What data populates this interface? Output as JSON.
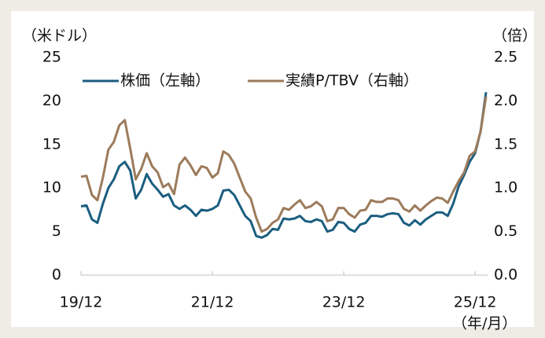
{
  "chart_data": {
    "type": "line",
    "y_label": "（米ドル）",
    "y2_label": "（倍）",
    "x_label": "（年/月）",
    "categories": [
      "19/12",
      null,
      null,
      null,
      null,
      null,
      null,
      null,
      null,
      null,
      null,
      null,
      null,
      null,
      null,
      null,
      null,
      null,
      null,
      null,
      null,
      null,
      null,
      null,
      "21/12",
      null,
      null,
      null,
      null,
      null,
      null,
      null,
      null,
      null,
      null,
      null,
      null,
      null,
      null,
      null,
      null,
      null,
      null,
      null,
      null,
      null,
      null,
      null,
      "23/12",
      null,
      null,
      null,
      null,
      null,
      null,
      null,
      null,
      null,
      null,
      null,
      null,
      null,
      null,
      null,
      null,
      null,
      null,
      null,
      null,
      null,
      null,
      null,
      "25/12",
      null,
      null
    ],
    "series": [
      {
        "name": "株価（左軸）",
        "color": "#1b5e80",
        "values": [
          7.9,
          8.0,
          6.4,
          6.0,
          8.2,
          10.0,
          11.0,
          12.5,
          13.0,
          12.0,
          8.8,
          9.8,
          11.6,
          10.5,
          9.8,
          9.0,
          9.3,
          8.0,
          7.6,
          8.0,
          7.5,
          6.8,
          7.5,
          7.4,
          7.6,
          8.0,
          9.7,
          9.8,
          9.2,
          8.0,
          6.8,
          6.2,
          4.5,
          4.3,
          4.6,
          5.3,
          5.2,
          6.5,
          6.4,
          6.5,
          6.8,
          6.2,
          6.1,
          6.4,
          6.2,
          5.0,
          5.2,
          6.1,
          6.0,
          5.3,
          5.0,
          5.8,
          6.0,
          6.8,
          6.8,
          6.7,
          7.0,
          7.1,
          7.0,
          6.0,
          5.7,
          6.3,
          5.8,
          6.4,
          6.8,
          7.2,
          7.2,
          6.8,
          8.2,
          10.2,
          11.5,
          13.0,
          14.0,
          16.5,
          21.0
        ]
      },
      {
        "name": "実績P/TBV（右軸）",
        "color": "#9c7b5b",
        "axis": "y2",
        "values": [
          1.13,
          1.14,
          0.92,
          0.86,
          1.12,
          1.44,
          1.53,
          1.72,
          1.78,
          1.45,
          1.1,
          1.22,
          1.4,
          1.25,
          1.18,
          1.01,
          1.05,
          0.93,
          1.27,
          1.35,
          1.26,
          1.15,
          1.25,
          1.23,
          1.12,
          1.17,
          1.42,
          1.38,
          1.28,
          1.12,
          0.96,
          0.88,
          0.66,
          0.5,
          0.53,
          0.6,
          0.64,
          0.77,
          0.75,
          0.81,
          0.86,
          0.77,
          0.79,
          0.84,
          0.79,
          0.62,
          0.64,
          0.77,
          0.77,
          0.7,
          0.66,
          0.74,
          0.75,
          0.86,
          0.84,
          0.84,
          0.88,
          0.88,
          0.86,
          0.76,
          0.73,
          0.8,
          0.74,
          0.8,
          0.85,
          0.89,
          0.88,
          0.83,
          0.96,
          1.08,
          1.18,
          1.37,
          1.42,
          1.65,
          2.05
        ]
      }
    ],
    "ylim": [
      0,
      25
    ],
    "yticks": [
      0,
      5,
      10,
      15,
      20,
      25
    ],
    "y2lim": [
      0,
      2.5
    ],
    "y2ticks": [
      {
        "value": 0,
        "label": "0.0"
      },
      {
        "value": 0.5,
        "label": "0.5"
      },
      {
        "value": 1,
        "label": "1.0"
      },
      {
        "value": 1.5,
        "label": "1.5"
      },
      {
        "value": 2,
        "label": "2.0"
      },
      {
        "value": 2.5,
        "label": "2.5"
      }
    ],
    "legend": "top"
  }
}
